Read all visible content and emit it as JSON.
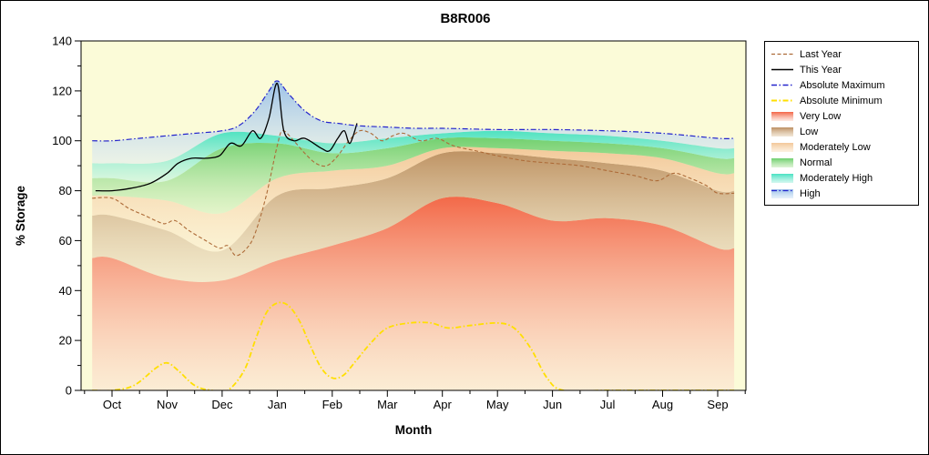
{
  "chart_data": {
    "type": "area",
    "title": "B8R006",
    "xlabel": "Month",
    "ylabel": "% Storage",
    "ylim": [
      0,
      140
    ],
    "yticks": [
      0,
      20,
      40,
      60,
      80,
      100,
      120,
      140
    ],
    "categories": [
      "Oct",
      "Nov",
      "Dec",
      "Jan",
      "Feb",
      "Mar",
      "Apr",
      "May",
      "Jun",
      "Jul",
      "Aug",
      "Sep"
    ],
    "plot_background": "#fbfbd8",
    "axis_color": "#000000",
    "legend_position": "top-right",
    "bands": [
      {
        "name": "Very Low",
        "top_color": "#f25c3c",
        "bottom_color": "#fcdcd0",
        "upper": [
          53,
          45,
          44,
          52,
          58,
          65,
          77,
          75,
          68,
          69,
          66,
          57
        ]
      },
      {
        "name": "Low",
        "top_color": "#b98a5a",
        "bottom_color": "#e9d7bd",
        "upper": [
          70,
          64,
          56,
          78,
          81,
          85,
          95,
          95,
          93,
          91,
          88,
          80
        ]
      },
      {
        "name": "Moderately Low",
        "top_color": "#f2c494",
        "bottom_color": "#fbe8cd",
        "upper": [
          78,
          76,
          71,
          85,
          88,
          90,
          97,
          97,
          96,
          95,
          93,
          87
        ]
      },
      {
        "name": "Normal",
        "top_color": "#66cc66",
        "bottom_color": "#c6ecb8",
        "upper": [
          85,
          84,
          97,
          99,
          95,
          97,
          101,
          101,
          100,
          99,
          97,
          93
        ]
      },
      {
        "name": "Moderately High",
        "top_color": "#3fe0bf",
        "bottom_color": "#b4f2e4",
        "upper": [
          91,
          92,
          103,
          102,
          99,
          101,
          103,
          104,
          103,
          102,
          100,
          97
        ]
      },
      {
        "name": "High",
        "top_color": "#93bce8",
        "bottom_color": "#d8e8f8",
        "upper_from_line": "Absolute Maximum",
        "legend_line": {
          "color": "#2424cc",
          "dash": "6,2.5,1.5,2.5"
        }
      }
    ],
    "lines": [
      {
        "name": "Last Year",
        "color": "#ad6b38",
        "width": 1.1,
        "dash": "4,2.5",
        "extend": true,
        "x": [
          0,
          0.3,
          0.6,
          0.9,
          1.0,
          1.15,
          1.4,
          1.7,
          1.95,
          2.1,
          2.25,
          2.45,
          2.6,
          2.8,
          3.0,
          3.1,
          3.3,
          3.5,
          3.7,
          3.9,
          4.1,
          4.3,
          4.5,
          4.7,
          4.9,
          5.1,
          5.3,
          5.6,
          5.9,
          6.2,
          6.6,
          7.0,
          7.5,
          8.0,
          8.5,
          9.0,
          9.5,
          9.9,
          10.2,
          10.5,
          10.8,
          11.0
        ],
        "y": [
          77,
          73,
          70,
          67,
          67,
          68,
          64,
          60,
          57,
          58,
          54,
          57,
          63,
          78,
          98,
          104,
          100,
          95,
          91,
          90,
          94,
          100,
          104,
          103,
          100,
          102,
          103,
          100,
          101,
          98,
          96,
          94,
          92,
          91,
          90,
          88,
          86,
          84,
          87,
          85,
          82,
          79
        ]
      },
      {
        "name": "This Year",
        "color": "#000000",
        "width": 1.3,
        "dash": "",
        "extend": false,
        "x": [
          -0.3,
          0,
          0.35,
          0.7,
          1.0,
          1.2,
          1.45,
          1.7,
          1.95,
          2.15,
          2.35,
          2.55,
          2.7,
          2.85,
          3.0,
          3.12,
          3.3,
          3.5,
          3.8,
          3.95,
          4.1,
          4.22,
          4.32,
          4.45
        ],
        "y": [
          80,
          80,
          81,
          83,
          87,
          91,
          93,
          93,
          94,
          99,
          98,
          104,
          101,
          109,
          123,
          104,
          100,
          101,
          97,
          96,
          101,
          104,
          99,
          107
        ]
      },
      {
        "name": "Absolute Maximum",
        "color": "#2424cc",
        "width": 1.2,
        "dash": "6,2.5,1.5,2.5",
        "extend": true,
        "x": [
          0,
          0.5,
          1,
          1.5,
          2,
          2.3,
          2.6,
          2.85,
          3.0,
          3.2,
          3.5,
          3.8,
          4.1,
          4.5,
          5,
          5.5,
          6,
          7,
          8,
          9,
          10,
          11
        ],
        "y": [
          100,
          101,
          102,
          103,
          104,
          106,
          112,
          120,
          124,
          119,
          112,
          108,
          107,
          106,
          105.5,
          105,
          105,
          104.5,
          104.5,
          104,
          103,
          101
        ]
      },
      {
        "name": "Absolute Minimum",
        "color": "#ffdf00",
        "width": 1.8,
        "dash": "6,2.5,1.5,2.5",
        "extend": true,
        "x": [
          0,
          0.4,
          0.8,
          1.0,
          1.2,
          1.5,
          1.8,
          2.1,
          2.4,
          2.6,
          2.8,
          3.0,
          3.2,
          3.4,
          3.6,
          3.8,
          4.0,
          4.2,
          4.4,
          4.7,
          5.0,
          5.4,
          5.8,
          6.1,
          6.5,
          7.0,
          7.3,
          7.6,
          7.9,
          8.2,
          9,
          10,
          11
        ],
        "y": [
          0,
          2,
          9,
          11,
          8,
          2,
          0,
          0,
          8,
          20,
          31,
          35,
          34,
          28,
          18,
          9,
          5,
          6,
          11,
          19,
          25,
          27,
          27,
          25,
          26,
          27,
          25,
          17,
          5,
          0,
          0,
          0,
          0
        ]
      }
    ]
  }
}
